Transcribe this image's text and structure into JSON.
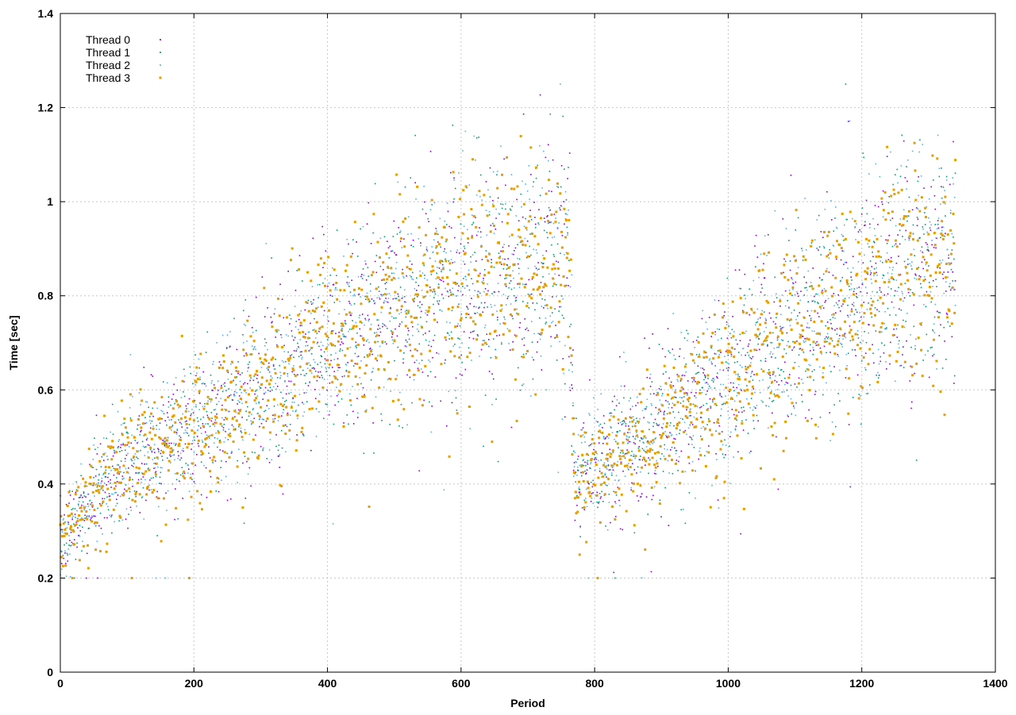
{
  "chart_data": {
    "type": "scatter",
    "title": "",
    "xlabel": "Period",
    "ylabel": "Time [sec]",
    "xlim": [
      0,
      1400
    ],
    "ylim": [
      0,
      1.4
    ],
    "x_ticks": [
      0,
      200,
      400,
      600,
      800,
      1000,
      1200,
      1400
    ],
    "y_ticks": [
      0,
      0.2,
      0.4,
      0.6,
      0.8,
      1,
      1.2,
      1.4
    ],
    "x_tick_labels": [
      "0",
      "200",
      "400",
      "600",
      "800",
      "1000",
      "1200",
      "1400"
    ],
    "y_tick_labels": [
      "0",
      "0.2",
      "0.4",
      "0.6",
      "0.8",
      "1",
      "1.2",
      "1.4"
    ],
    "grid": true,
    "legend_position": "top-left",
    "point_counts_per_series": 1340,
    "x_range_of_data": [
      0,
      1340
    ],
    "series": [
      {
        "name": "Thread 0",
        "color": "#9400d3",
        "marker": "dot",
        "trend": [
          {
            "x": 0,
            "y": 0.27
          },
          {
            "x": 50,
            "y": 0.38
          },
          {
            "x": 100,
            "y": 0.44
          },
          {
            "x": 150,
            "y": 0.48
          },
          {
            "x": 200,
            "y": 0.52
          },
          {
            "x": 300,
            "y": 0.6
          },
          {
            "x": 400,
            "y": 0.7
          },
          {
            "x": 500,
            "y": 0.78
          },
          {
            "x": 600,
            "y": 0.82
          },
          {
            "x": 700,
            "y": 0.86
          },
          {
            "x": 760,
            "y": 0.88
          },
          {
            "x": 770,
            "y": 0.42
          },
          {
            "x": 850,
            "y": 0.48
          },
          {
            "x": 950,
            "y": 0.58
          },
          {
            "x": 1050,
            "y": 0.7
          },
          {
            "x": 1150,
            "y": 0.78
          },
          {
            "x": 1250,
            "y": 0.86
          },
          {
            "x": 1340,
            "y": 0.88
          }
        ]
      },
      {
        "name": "Thread 1",
        "color": "#009e73",
        "marker": "dot",
        "trend": [
          {
            "x": 0,
            "y": 0.27
          },
          {
            "x": 50,
            "y": 0.38
          },
          {
            "x": 100,
            "y": 0.44
          },
          {
            "x": 150,
            "y": 0.48
          },
          {
            "x": 200,
            "y": 0.52
          },
          {
            "x": 300,
            "y": 0.6
          },
          {
            "x": 400,
            "y": 0.7
          },
          {
            "x": 500,
            "y": 0.78
          },
          {
            "x": 600,
            "y": 0.83
          },
          {
            "x": 700,
            "y": 0.87
          },
          {
            "x": 760,
            "y": 0.88
          },
          {
            "x": 770,
            "y": 0.42
          },
          {
            "x": 850,
            "y": 0.48
          },
          {
            "x": 950,
            "y": 0.58
          },
          {
            "x": 1050,
            "y": 0.69
          },
          {
            "x": 1150,
            "y": 0.78
          },
          {
            "x": 1250,
            "y": 0.86
          },
          {
            "x": 1340,
            "y": 0.87
          }
        ]
      },
      {
        "name": "Thread 2",
        "color": "#56b4e9",
        "marker": "dot",
        "trend": [
          {
            "x": 0,
            "y": 0.27
          },
          {
            "x": 50,
            "y": 0.38
          },
          {
            "x": 100,
            "y": 0.44
          },
          {
            "x": 150,
            "y": 0.48
          },
          {
            "x": 200,
            "y": 0.52
          },
          {
            "x": 300,
            "y": 0.6
          },
          {
            "x": 400,
            "y": 0.7
          },
          {
            "x": 500,
            "y": 0.78
          },
          {
            "x": 600,
            "y": 0.83
          },
          {
            "x": 700,
            "y": 0.87
          },
          {
            "x": 760,
            "y": 0.88
          },
          {
            "x": 770,
            "y": 0.42
          },
          {
            "x": 850,
            "y": 0.48
          },
          {
            "x": 950,
            "y": 0.58
          },
          {
            "x": 1050,
            "y": 0.69
          },
          {
            "x": 1150,
            "y": 0.78
          },
          {
            "x": 1250,
            "y": 0.86
          },
          {
            "x": 1340,
            "y": 0.87
          }
        ]
      },
      {
        "name": "Thread 3",
        "color": "#e69f00",
        "marker": "square-dot",
        "trend": [
          {
            "x": 0,
            "y": 0.27
          },
          {
            "x": 50,
            "y": 0.38
          },
          {
            "x": 100,
            "y": 0.44
          },
          {
            "x": 150,
            "y": 0.48
          },
          {
            "x": 200,
            "y": 0.52
          },
          {
            "x": 300,
            "y": 0.6
          },
          {
            "x": 400,
            "y": 0.7
          },
          {
            "x": 500,
            "y": 0.77
          },
          {
            "x": 600,
            "y": 0.82
          },
          {
            "x": 700,
            "y": 0.88
          },
          {
            "x": 760,
            "y": 0.9
          },
          {
            "x": 770,
            "y": 0.4
          },
          {
            "x": 850,
            "y": 0.47
          },
          {
            "x": 950,
            "y": 0.57
          },
          {
            "x": 1050,
            "y": 0.68
          },
          {
            "x": 1150,
            "y": 0.77
          },
          {
            "x": 1250,
            "y": 0.86
          },
          {
            "x": 1340,
            "y": 0.86
          }
        ]
      }
    ]
  }
}
